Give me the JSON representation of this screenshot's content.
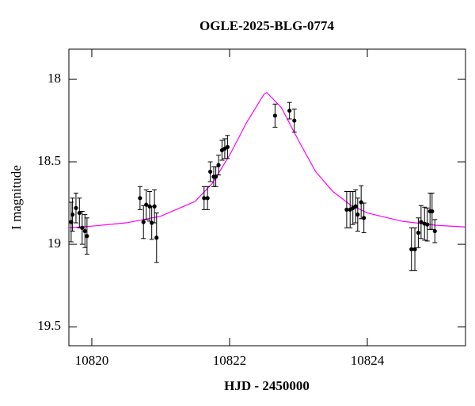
{
  "chart_data": {
    "type": "scatter",
    "title": "OGLE-2025-BLG-0774",
    "x_label": "HJD - 2450000",
    "y_label": "I magnitude",
    "xlim": [
      10819.667,
      10825.425
    ],
    "ylim": [
      19.615,
      17.817
    ],
    "xticks": [
      10820,
      10822,
      10824
    ],
    "yticks": [
      18,
      18.5,
      19,
      19.5
    ],
    "series": [
      {
        "type": "errorbar",
        "color": "#000000",
        "x": [
          10819.7,
          10819.72,
          10819.77,
          10819.82,
          10819.86,
          10819.9,
          10819.93,
          10820.7,
          10820.75,
          10820.79,
          10820.84,
          10820.87,
          10820.91,
          10820.94,
          10821.63,
          10821.68,
          10821.72,
          10821.77,
          10821.8,
          10821.84,
          10821.89,
          10821.93,
          10821.97,
          10822.66,
          10822.87,
          10822.94,
          10823.7,
          10823.75,
          10823.79,
          10823.83,
          10823.86,
          10823.91,
          10823.95,
          10824.64,
          10824.69,
          10824.74,
          10824.78,
          10824.83,
          10824.87,
          10824.91,
          10824.94,
          10824.98
        ],
        "values": [
          18.865,
          18.82,
          18.78,
          18.81,
          18.9,
          18.92,
          18.95,
          18.72,
          18.865,
          18.76,
          18.77,
          18.87,
          18.77,
          18.96,
          18.72,
          18.72,
          18.56,
          18.59,
          18.59,
          18.52,
          18.43,
          18.42,
          18.41,
          18.22,
          18.19,
          18.25,
          18.79,
          18.79,
          18.78,
          18.77,
          18.82,
          18.745,
          18.84,
          19.03,
          19.03,
          18.93,
          18.865,
          18.875,
          18.88,
          18.8,
          18.8,
          18.92
        ],
        "errors": [
          0.12,
          0.1,
          0.09,
          0.09,
          0.1,
          0.1,
          0.11,
          0.07,
          0.1,
          0.09,
          0.09,
          0.1,
          0.1,
          0.15,
          0.07,
          0.07,
          0.06,
          0.06,
          0.06,
          0.06,
          0.06,
          0.06,
          0.07,
          0.07,
          0.05,
          0.07,
          0.11,
          0.11,
          0.1,
          0.1,
          0.1,
          0.1,
          0.09,
          0.13,
          0.13,
          0.09,
          0.1,
          0.1,
          0.1,
          0.11,
          0.11,
          0.07
        ]
      },
      {
        "type": "line",
        "color": "#ff00ff",
        "x": [
          10819.667,
          10820,
          10820.5,
          10821,
          10821.5,
          10821.75,
          10822,
          10822.25,
          10822.5,
          10822.54,
          10822.75,
          10823,
          10823.25,
          10823.5,
          10823.75,
          10824,
          10824.5,
          10825,
          10825.425
        ],
        "values": [
          18.9,
          18.89,
          18.87,
          18.83,
          18.74,
          18.63,
          18.46,
          18.26,
          18.09,
          18.08,
          18.17,
          18.37,
          18.56,
          18.68,
          18.76,
          18.81,
          18.86,
          18.885,
          18.895
        ]
      }
    ]
  }
}
